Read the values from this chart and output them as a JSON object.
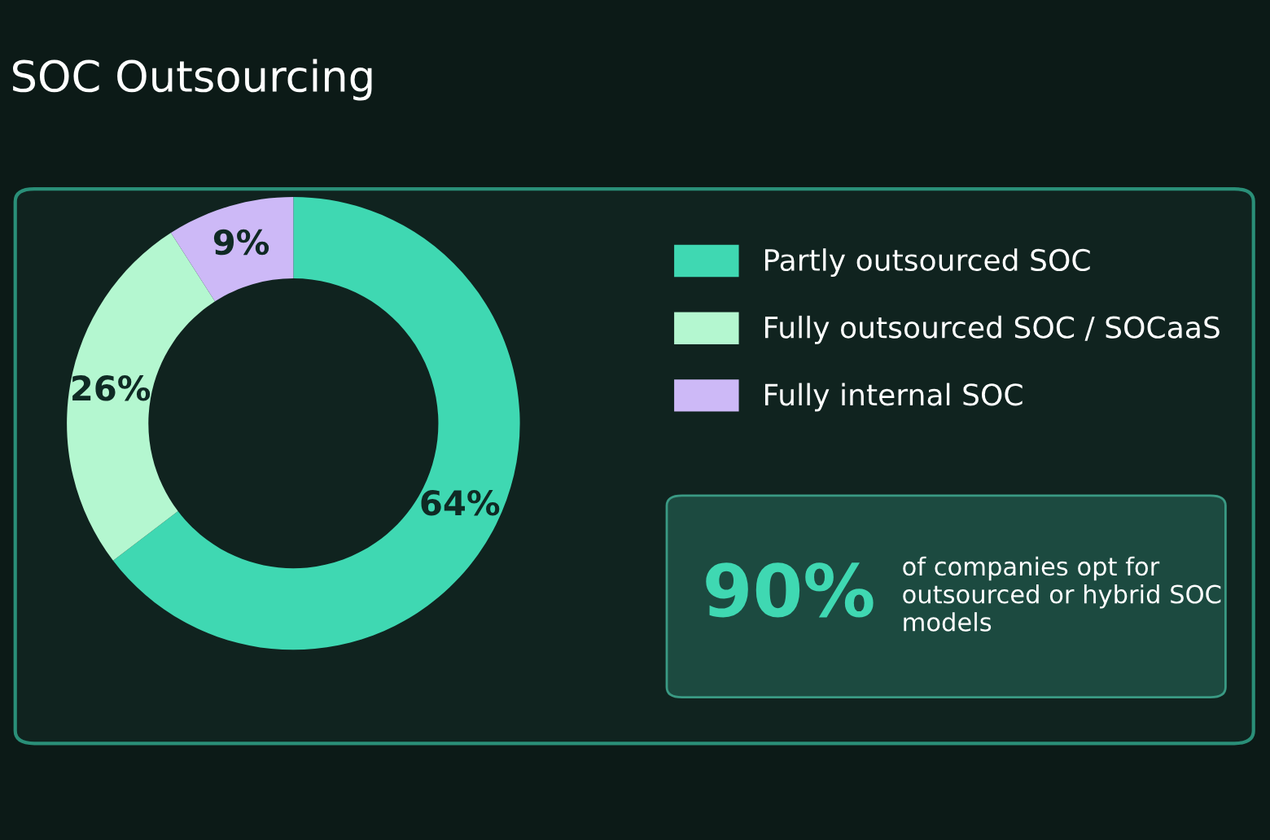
{
  "chart_data": {
    "type": "donut",
    "title": "SOC Outsourcing",
    "categories": [
      "Partly outsourced SOC",
      "Fully outsourced SOC / SOCaaS",
      "Fully internal SOC"
    ],
    "values": [
      64,
      26,
      9
    ],
    "colors": [
      "#3fd8b2",
      "#b4f7d0",
      "#cdb9f7"
    ],
    "value_labels": [
      "64%",
      "26%",
      "9%"
    ],
    "legend": "right",
    "annotations": [
      "90%",
      "of companies opt for outsourced or hybrid SOC models"
    ]
  }
}
